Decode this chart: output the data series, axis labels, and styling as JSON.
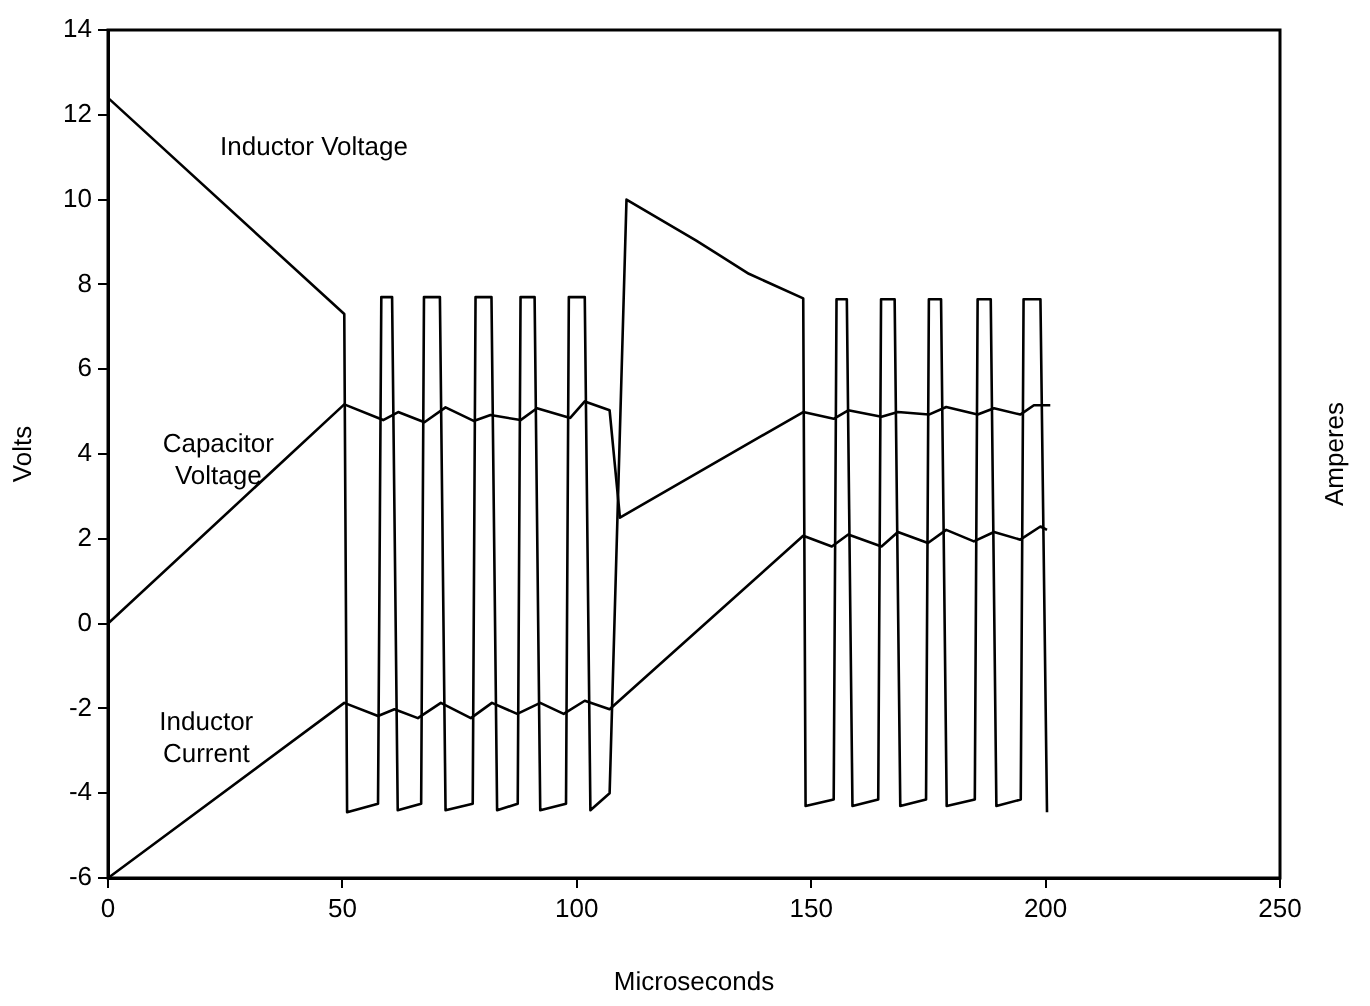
{
  "chart_data": {
    "type": "line",
    "xlabel": "Microseconds",
    "ylabel": "Volts",
    "y2label": "Amperes",
    "xlim": [
      0,
      250
    ],
    "xticks": [
      0,
      50,
      100,
      150,
      200,
      250
    ],
    "ylim": [
      -6,
      14
    ],
    "yticks": [
      -6,
      -4,
      -2,
      0,
      2,
      4,
      6,
      8,
      10,
      12,
      14
    ],
    "grid": false,
    "legend": false,
    "marker": "none",
    "line_style": "solid",
    "series": [
      {
        "name": "Inductor Voltage",
        "color": "#000000",
        "x": [
          0,
          50.4,
          51,
          57.6,
          58.3,
          60.6,
          61.8,
          66.8,
          67.4,
          70.8,
          72,
          77.8,
          78.4,
          81.8,
          83,
          87.4,
          88,
          91,
          92.2,
          97.7,
          98.3,
          101.7,
          102.9,
          107,
          110.6,
          125.4,
          136.7,
          148.3,
          148.8,
          154.8,
          155.4,
          157.6,
          158.8,
          164.3,
          164.9,
          167.8,
          169,
          174.5,
          175.1,
          177.7,
          178.9,
          184.9,
          185.5,
          188.3,
          189.5,
          194.7,
          195.3,
          198.9,
          200.3
        ],
        "values": [
          12.4,
          7.3,
          -4.45,
          -4.25,
          7.7,
          7.7,
          -4.4,
          -4.25,
          7.7,
          7.7,
          -4.4,
          -4.25,
          7.7,
          7.7,
          -4.4,
          -4.25,
          7.7,
          7.7,
          -4.4,
          -4.25,
          7.7,
          7.7,
          -4.4,
          -4.0,
          10.0,
          9.04,
          8.25,
          7.67,
          -4.3,
          -4.15,
          7.65,
          7.65,
          -4.3,
          -4.15,
          7.65,
          7.65,
          -4.3,
          -4.15,
          7.65,
          7.65,
          -4.3,
          -4.15,
          7.65,
          7.65,
          -4.3,
          -4.15,
          7.65,
          7.65,
          -4.45
        ]
      },
      {
        "name": "Capacitor Voltage",
        "color": "#000000",
        "x": [
          0,
          50.4,
          58.7,
          61.9,
          67.5,
          72,
          78,
          81.6,
          88,
          91.5,
          98.6,
          101.7,
          107,
          109.2,
          148.3,
          154.8,
          157.9,
          165,
          168.5,
          175.1,
          178.8,
          185.5,
          189,
          194.6,
          197.5,
          201
        ],
        "values": [
          0,
          5.17,
          4.8,
          4.99,
          4.75,
          5.1,
          4.78,
          4.92,
          4.8,
          5.08,
          4.85,
          5.24,
          5.03,
          2.5,
          4.99,
          4.83,
          5.03,
          4.88,
          4.99,
          4.93,
          5.11,
          4.93,
          5.08,
          4.93,
          5.15,
          5.15
        ]
      },
      {
        "name": "Inductor Current",
        "color": "#000000",
        "x": [
          0,
          50.4,
          57.6,
          61.1,
          66.1,
          71,
          77.4,
          81.9,
          87.3,
          92.2,
          97.2,
          101.7,
          107,
          148.3,
          154.4,
          157.9,
          165,
          168.5,
          174.9,
          178.8,
          184.7,
          189,
          194.6,
          198.9,
          200.3
        ],
        "values": [
          -6,
          -1.87,
          -2.18,
          -2.02,
          -2.23,
          -1.87,
          -2.23,
          -1.87,
          -2.13,
          -1.87,
          -2.13,
          -1.82,
          -2.02,
          2.07,
          1.82,
          2.1,
          1.82,
          2.16,
          1.9,
          2.21,
          1.94,
          2.16,
          1.98,
          2.29,
          2.21
        ]
      }
    ]
  }
}
